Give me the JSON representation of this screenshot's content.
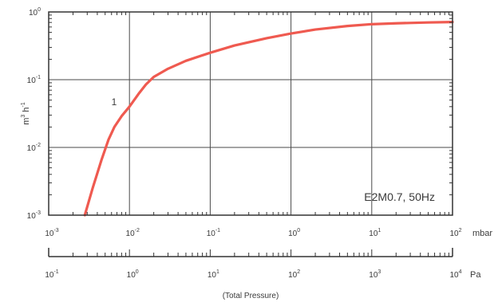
{
  "chart_data": {
    "type": "line",
    "xscale": "log",
    "yscale": "log",
    "xlim": [
      0.001,
      100
    ],
    "ylim": [
      0.001,
      1
    ],
    "x_ticks": [
      {
        "base": "10",
        "exp": "-3"
      },
      {
        "base": "10",
        "exp": "-2"
      },
      {
        "base": "10",
        "exp": "-1"
      },
      {
        "base": "10",
        "exp": "0"
      },
      {
        "base": "10",
        "exp": "1"
      },
      {
        "base": "10",
        "exp": "2"
      }
    ],
    "y_ticks": [
      {
        "base": "10",
        "exp": "-3"
      },
      {
        "base": "10",
        "exp": "-2"
      },
      {
        "base": "10",
        "exp": "-1"
      },
      {
        "base": "10",
        "exp": "0"
      }
    ],
    "x_unit": "mbar",
    "ylabel": {
      "base1": "m",
      "exp1": "3",
      "base2": " h",
      "exp2": "-1"
    },
    "secondary_axis": {
      "unit": "Pa",
      "ticks": [
        {
          "base": "10",
          "exp": "-1"
        },
        {
          "base": "10",
          "exp": "0"
        },
        {
          "base": "10",
          "exp": "1"
        },
        {
          "base": "10",
          "exp": "2"
        },
        {
          "base": "10",
          "exp": "3"
        },
        {
          "base": "10",
          "exp": "4"
        }
      ]
    },
    "xlabel": "(Total Pressure)",
    "annotation": "E2M0.7, 50Hz",
    "grid": true,
    "series": [
      {
        "name": "1",
        "color": "#ef5a50",
        "x": [
          0.0028,
          0.0035,
          0.0045,
          0.0055,
          0.0065,
          0.008,
          0.01,
          0.013,
          0.016,
          0.02,
          0.03,
          0.05,
          0.1,
          0.2,
          0.5,
          1,
          2,
          5,
          10,
          20,
          50,
          100
        ],
        "y": [
          0.001,
          0.0025,
          0.0065,
          0.013,
          0.02,
          0.029,
          0.04,
          0.062,
          0.085,
          0.11,
          0.145,
          0.19,
          0.25,
          0.32,
          0.41,
          0.48,
          0.55,
          0.62,
          0.66,
          0.68,
          0.7,
          0.71
        ]
      }
    ]
  }
}
